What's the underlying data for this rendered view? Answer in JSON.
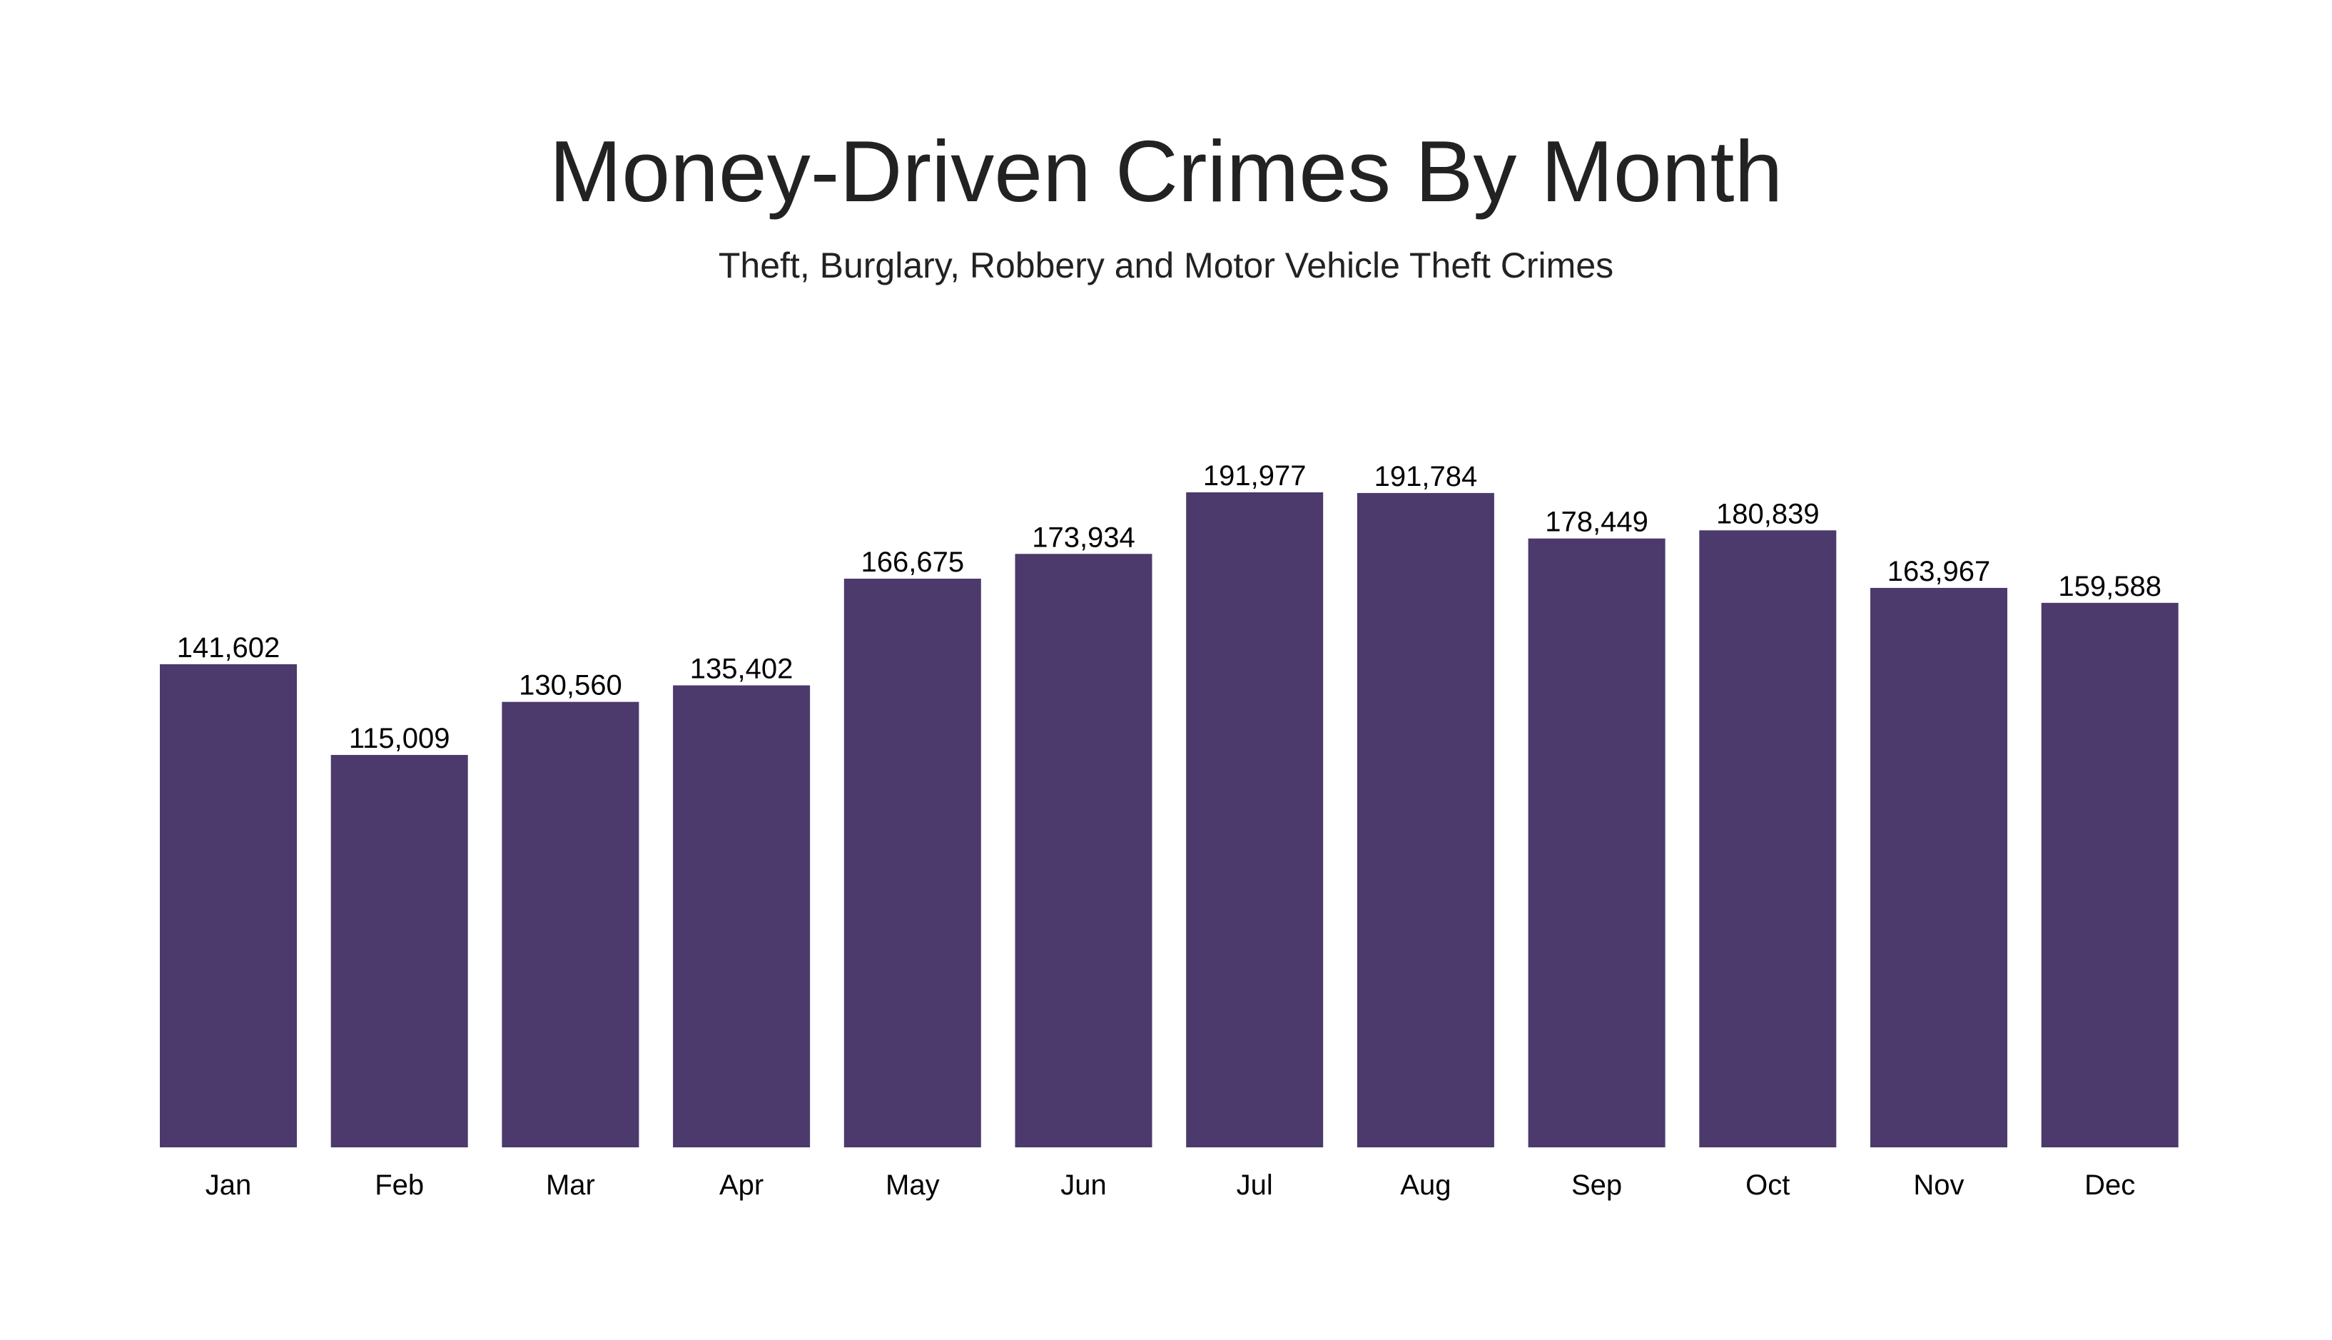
{
  "chart_data": {
    "type": "bar",
    "title": "Money-Driven Crimes By Month",
    "subtitle": "Theft, Burglary, Robbery and Motor Vehicle Theft Crimes",
    "xlabel": "",
    "ylabel": "",
    "categories": [
      "Jan",
      "Feb",
      "Mar",
      "Apr",
      "May",
      "Jun",
      "Jul",
      "Aug",
      "Sep",
      "Oct",
      "Nov",
      "Dec"
    ],
    "values": [
      141602,
      115009,
      130560,
      135402,
      166675,
      173934,
      191977,
      191784,
      178449,
      180839,
      163967,
      159588
    ],
    "value_labels": [
      "141,602",
      "115,009",
      "130,560",
      "135,402",
      "166,675",
      "173,934",
      "191,977",
      "191,784",
      "178,449",
      "180,839",
      "163,967",
      "159,588"
    ],
    "ylim": [
      0,
      191977
    ],
    "grid": false,
    "legend": "none",
    "colors": {
      "bar": "#4b3a6b",
      "title": "#222222",
      "text": "#000000"
    }
  }
}
